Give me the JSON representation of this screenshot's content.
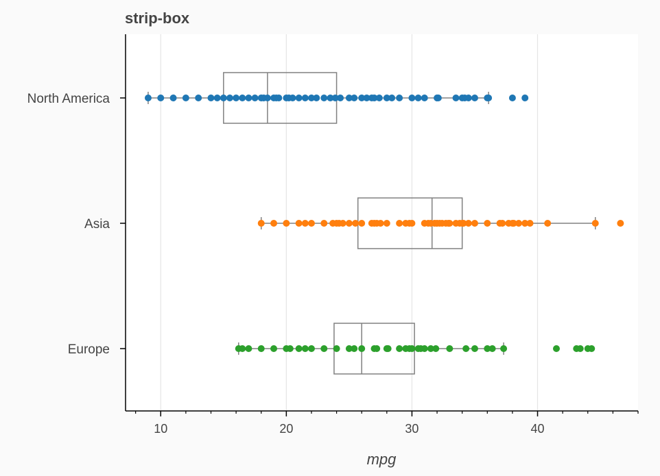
{
  "chart_data": {
    "type": "box",
    "title": "strip-box",
    "xlabel": "mpg",
    "ylabel": "",
    "xlim": [
      7.2,
      48
    ],
    "xticks": [
      10,
      20,
      30,
      40
    ],
    "grid": "vertical",
    "categories": [
      "North America",
      "Asia",
      "Europe"
    ],
    "series": [
      {
        "category": "North America",
        "color": "#1f77b4",
        "box": {
          "whisker_low": 9,
          "q1": 15,
          "median": 18.5,
          "q3": 24,
          "whisker_high": 36.1
        },
        "points": [
          9,
          10,
          11,
          12,
          13,
          14,
          14.5,
          15,
          15.5,
          16,
          16.5,
          17,
          17.5,
          18,
          18.2,
          18.5,
          19,
          19.2,
          19.4,
          20,
          20.2,
          20.5,
          21,
          21.5,
          22,
          22.4,
          23,
          23.5,
          23.9,
          24.3,
          25,
          25.4,
          26,
          26.4,
          26.8,
          27,
          27.4,
          28,
          28.4,
          29,
          30,
          30.5,
          31,
          32,
          32.1,
          33.5,
          34,
          34.2,
          34.5,
          35,
          36,
          36.1,
          38,
          39
        ]
      },
      {
        "category": "Asia",
        "color": "#ff7f0e",
        "box": {
          "whisker_low": 18,
          "q1": 25.7,
          "median": 31.6,
          "q3": 34,
          "whisker_high": 44.6
        },
        "points": [
          18,
          19,
          20,
          21,
          21.5,
          22,
          23,
          23.7,
          24,
          24.2,
          24.5,
          25,
          25.5,
          26,
          26.8,
          27,
          27.2,
          27.5,
          28,
          29,
          29.5,
          29.8,
          30,
          31,
          31.3,
          31.5,
          31.8,
          32,
          32.2,
          32.4,
          32.7,
          32.9,
          33,
          33.5,
          33.8,
          34,
          34.1,
          34.5,
          35,
          36,
          37,
          37.2,
          37.7,
          38,
          38.1,
          38.5,
          39,
          39.4,
          40.8,
          44.6,
          46.6
        ]
      },
      {
        "category": "Europe",
        "color": "#2ca02c",
        "box": {
          "whisker_low": 16.2,
          "q1": 23.8,
          "median": 26,
          "q3": 30.2,
          "whisker_high": 37.3
        },
        "points": [
          16.2,
          16.5,
          17,
          18,
          19,
          20,
          20.3,
          21,
          21.5,
          22,
          23,
          24,
          25,
          25.4,
          26,
          27,
          27.2,
          28,
          28.1,
          29,
          29.5,
          29.8,
          30,
          30.5,
          30.7,
          31,
          31.5,
          31.9,
          33,
          34.3,
          35,
          36,
          36.4,
          37.3,
          41.5,
          43.1,
          43.4,
          44,
          44.3
        ]
      }
    ]
  }
}
